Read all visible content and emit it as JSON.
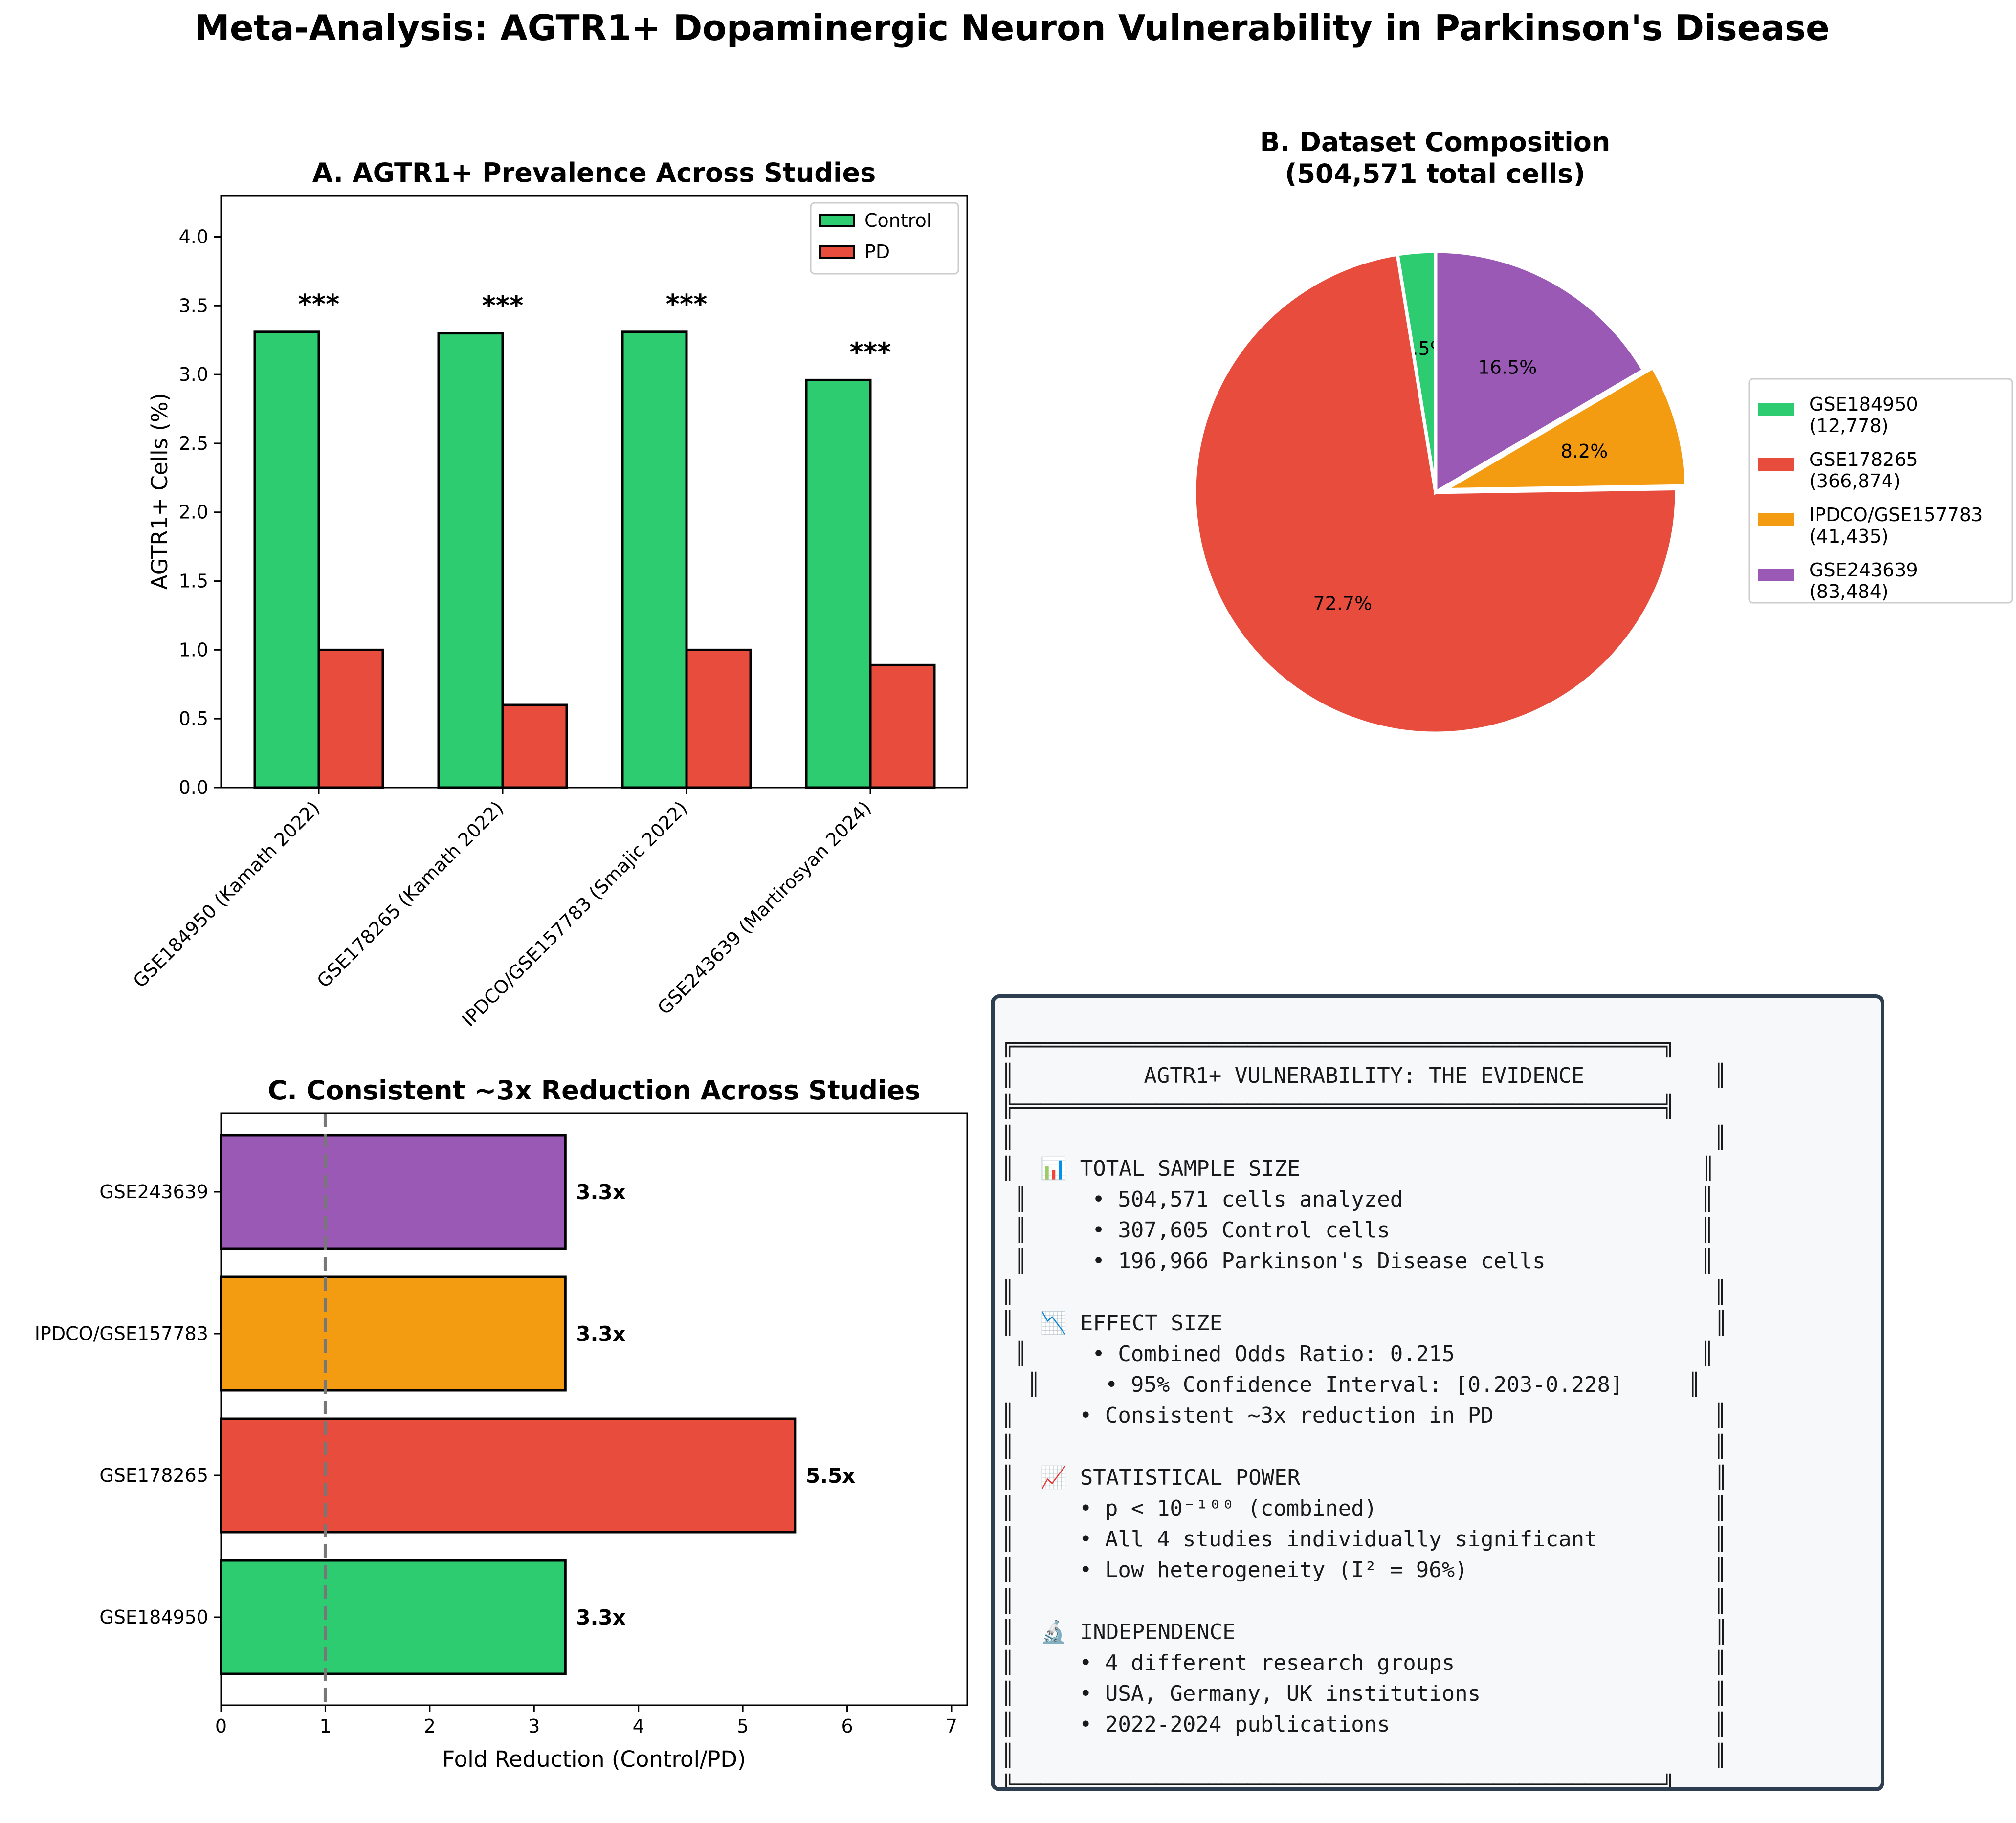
{
  "title": "Meta-Analysis: AGTR1+ Dopaminergic Neuron Vulnerability in Parkinson's Disease",
  "colors": {
    "control": "#2ecc71",
    "pd": "#e74c3c",
    "studies": [
      "#2ecc71",
      "#e74c3c",
      "#f39c12",
      "#9b59b6"
    ],
    "summary_border": "#2c3e50",
    "summary_bg": "#f6f8fa"
  },
  "chart_data": [
    {
      "type": "bar",
      "title": "A. AGTR1+ Prevalence Across Studies",
      "xlabel": "",
      "ylabel": "AGTR1+ Cells (%)",
      "categories": [
        "GSE184950 (Kamath 2022)",
        "GSE178265 (Kamath 2022)",
        "IPDCO/GSE157783 (Smajic 2022)",
        "GSE243639 (Martirosyan 2024)"
      ],
      "series": [
        {
          "name": "Control",
          "values": [
            3.31,
            3.3,
            3.31,
            2.96
          ]
        },
        {
          "name": "PD",
          "values": [
            1.0,
            0.6,
            1.0,
            0.89
          ]
        }
      ],
      "annotations": [
        "***",
        "***",
        "***",
        "***"
      ],
      "ylim": [
        0,
        4.3
      ],
      "yticks": [
        "0.0",
        "0.5",
        "1.0",
        "1.5",
        "2.0",
        "2.5",
        "3.0",
        "3.5",
        "4.0"
      ],
      "legend": "top-right",
      "grid": false
    },
    {
      "type": "pie",
      "title": "B. Dataset Composition",
      "subtitle": "(504,571 total cells)",
      "labels": [
        "GSE184950",
        "GSE178265",
        "IPDCO/GSE157783",
        "GSE243639"
      ],
      "counts": [
        "(12,778)",
        "(366,874)",
        "(41,435)",
        "(83,484)"
      ],
      "values": [
        12778,
        366874,
        41435,
        83484
      ],
      "pct_labels": [
        "2.5%",
        "72.7%",
        "8.2%",
        "16.5%"
      ],
      "legend": "right"
    },
    {
      "type": "bar",
      "orientation": "horizontal",
      "title": "C. Consistent ~3x Reduction Across Studies",
      "xlabel": "Fold Reduction (Control/PD)",
      "ylabel": "",
      "categories": [
        "GSE184950",
        "GSE178265",
        "IPDCO/GSE157783",
        "GSE243639"
      ],
      "values": [
        3.3,
        5.5,
        3.3,
        3.3
      ],
      "value_labels": [
        "3.3x",
        "5.5x",
        "3.3x",
        "3.3x"
      ],
      "xlim": [
        0,
        7.15
      ],
      "xticks": [
        "0",
        "1",
        "2",
        "3",
        "4",
        "5",
        "6",
        "7"
      ],
      "reference_line": 1,
      "grid": false
    }
  ],
  "summary": {
    "text": "╔══════════════════════════════════════════════════╗\n║          AGTR1+ VULNERABILITY: THE EVIDENCE          ║\n╠══════════════════════════════════════════════════╣\n║                                                      ║\n║  📊 TOTAL SAMPLE SIZE                               ║\n ║     • 504,571 cells analyzed                       ║\n ║     • 307,605 Control cells                        ║\n ║     • 196,966 Parkinson's Disease cells            ║\n║                                                      ║\n║  📉 EFFECT SIZE                                      ║\n ║     • Combined Odds Ratio: 0.215                   ║\n  ║     • 95% Confidence Interval: [0.203-0.228]     ║\n║     • Consistent ~3x reduction in PD                 ║\n║                                                      ║\n║  📈 STATISTICAL POWER                                ║\n║     • p < 10⁻¹⁰⁰ (combined)                          ║\n║     • All 4 studies individually significant         ║\n║     • Low heterogeneity (I² = 96%)                   ║\n║                                                      ║\n║  🔬 INDEPENDENCE                                     ║\n║     • 4 different research groups                    ║\n║     • USA, Germany, UK institutions                  ║\n║     • 2022-2024 publications                         ║\n║                                                      ║\n╚══════════════════════════════════════════════════╝"
  }
}
